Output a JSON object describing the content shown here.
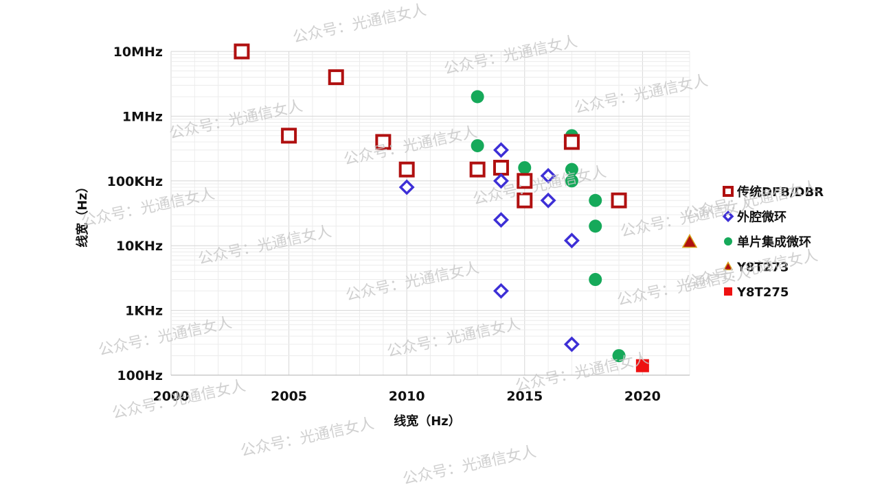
{
  "chart_data": {
    "type": "scatter",
    "x_axis": {
      "label": "线宽（Hz）",
      "range": [
        2000,
        2022
      ],
      "ticks": [
        2000,
        2005,
        2010,
        2015,
        2020
      ],
      "tick_labels": [
        "2000",
        "2005",
        "2010",
        "2015",
        "2020"
      ]
    },
    "y_axis": {
      "label": "线宽（Hz）",
      "scale": "log",
      "range": [
        100,
        10000000
      ],
      "ticks": [
        100,
        1000,
        10000,
        100000,
        1000000,
        10000000
      ],
      "tick_labels": [
        "100Hz",
        "1KHz",
        "10KHz",
        "100KHz",
        "1MHz",
        "10MHz"
      ]
    },
    "grid": true,
    "legend_position": "right",
    "series": [
      {
        "name": "传统DFB/DBR",
        "marker": "hollow-square",
        "color": "#b01010",
        "points": [
          {
            "x": 2003,
            "y": 10000000
          },
          {
            "x": 2005,
            "y": 500000
          },
          {
            "x": 2007,
            "y": 4000000
          },
          {
            "x": 2009,
            "y": 400000
          },
          {
            "x": 2010,
            "y": 150000
          },
          {
            "x": 2013,
            "y": 150000
          },
          {
            "x": 2014,
            "y": 160000
          },
          {
            "x": 2015,
            "y": 100000
          },
          {
            "x": 2015,
            "y": 50000
          },
          {
            "x": 2017,
            "y": 400000
          },
          {
            "x": 2019,
            "y": 50000
          }
        ]
      },
      {
        "name": "外腔微环",
        "marker": "hollow-diamond",
        "color": "#3d2fd6",
        "points": [
          {
            "x": 2010,
            "y": 80000
          },
          {
            "x": 2014,
            "y": 300000
          },
          {
            "x": 2014,
            "y": 100000
          },
          {
            "x": 2014,
            "y": 25000
          },
          {
            "x": 2014,
            "y": 2000
          },
          {
            "x": 2016,
            "y": 120000
          },
          {
            "x": 2016,
            "y": 50000
          },
          {
            "x": 2017,
            "y": 12000
          },
          {
            "x": 2017,
            "y": 300
          }
        ]
      },
      {
        "name": "单片集成微环",
        "marker": "circle",
        "color": "#16a95a",
        "points": [
          {
            "x": 2013,
            "y": 2000000
          },
          {
            "x": 2013,
            "y": 350000
          },
          {
            "x": 2015,
            "y": 160000
          },
          {
            "x": 2015,
            "y": 50000
          },
          {
            "x": 2017,
            "y": 500000
          },
          {
            "x": 2017,
            "y": 150000
          },
          {
            "x": 2017,
            "y": 100000
          },
          {
            "x": 2018,
            "y": 50000
          },
          {
            "x": 2018,
            "y": 20000
          },
          {
            "x": 2018,
            "y": 3000
          },
          {
            "x": 2019,
            "y": 200
          }
        ]
      },
      {
        "name": "Y8T273",
        "marker": "triangle",
        "color": "#b01010",
        "edge_color": "#d4a017",
        "points": [
          {
            "x": 2022,
            "y": 11500
          }
        ]
      },
      {
        "name": "Y8T275",
        "marker": "filled-square",
        "color": "#ee1111",
        "points": [
          {
            "x": 2020,
            "y": 140
          }
        ]
      }
    ]
  },
  "watermark": {
    "text": "公众号：光通信女人"
  }
}
